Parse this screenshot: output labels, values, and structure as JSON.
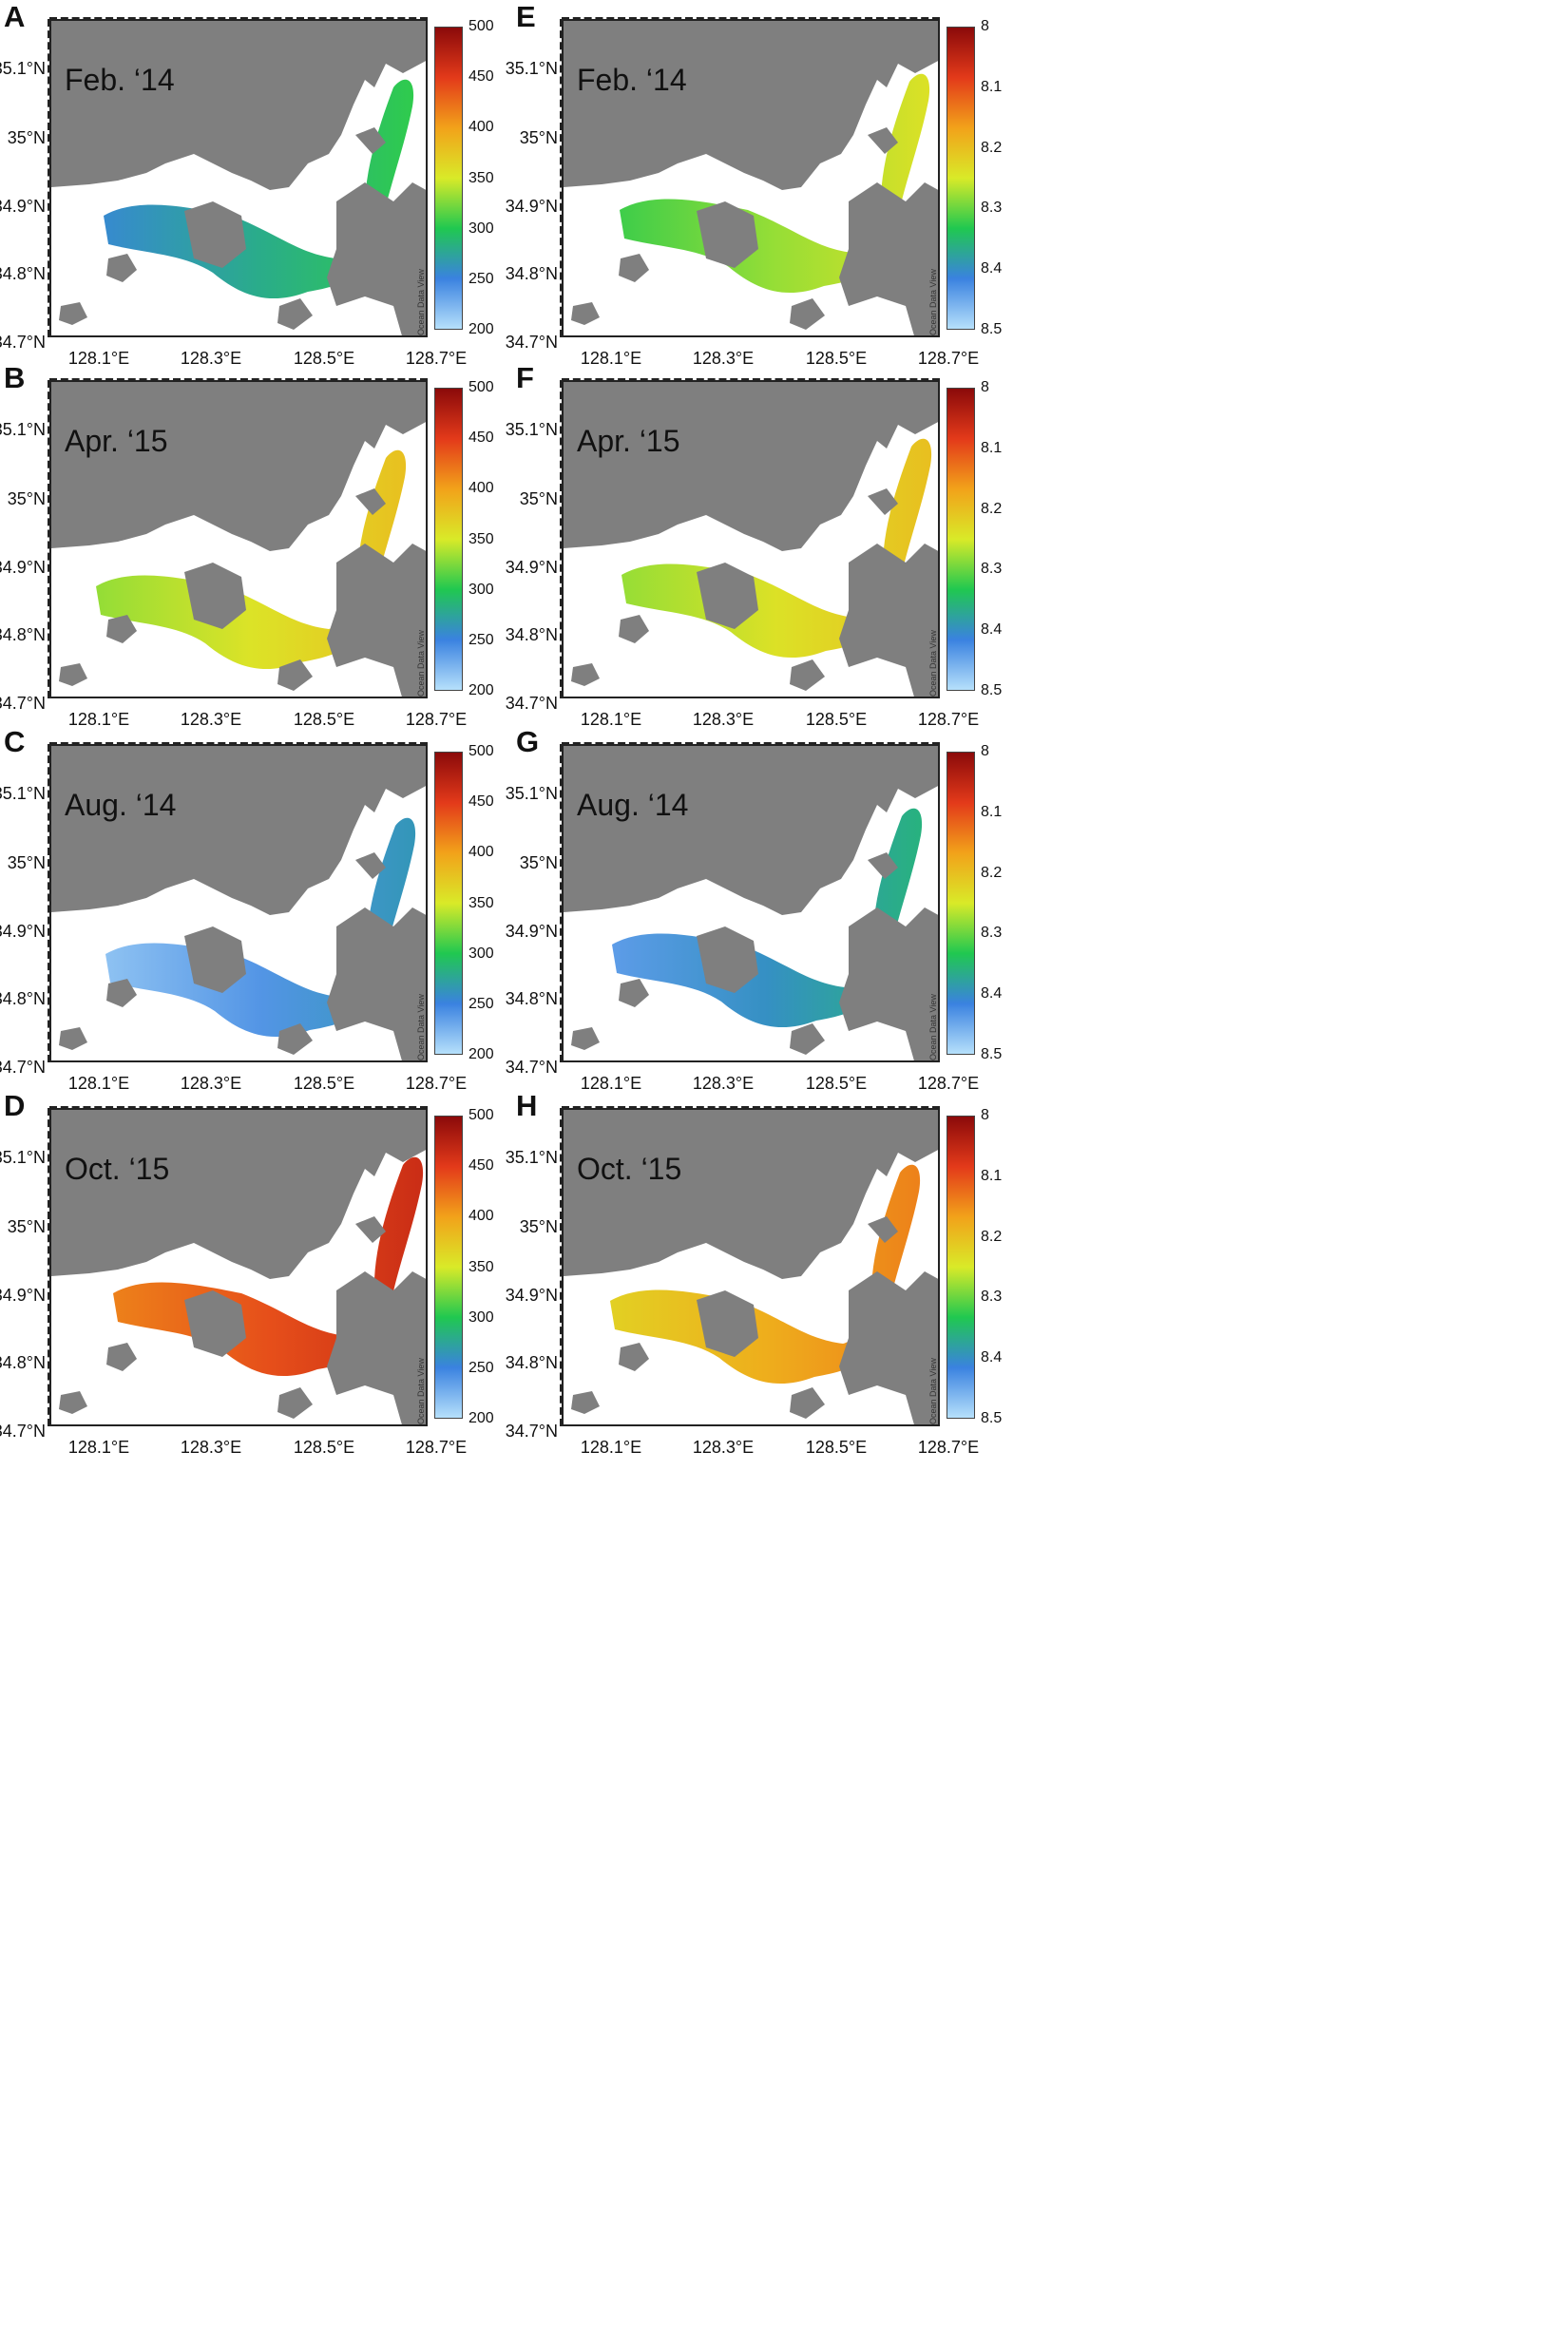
{
  "colors": {
    "land": "#7f7f7f",
    "water": "#ffffff",
    "scale": [
      "#b6e0fb",
      "#3a82e0",
      "#20c850",
      "#d9ea28",
      "#f2a21a",
      "#e33a1a",
      "#8b0a0a"
    ]
  },
  "axes": {
    "lat_ticks": [
      "35.1°N",
      "35°N",
      "34.9°N",
      "34.8°N",
      "34.7°N"
    ],
    "lon_ticks": [
      "128.1°E",
      "128.3°E",
      "128.5°E",
      "128.7°E"
    ]
  },
  "colorbars": {
    "left": {
      "ticks": [
        "500",
        "450",
        "400",
        "350",
        "300",
        "250",
        "200"
      ],
      "min": 200,
      "max": 500
    },
    "right": {
      "ticks": [
        "8",
        "8.1",
        "8.2",
        "8.3",
        "8.4",
        "8.5"
      ],
      "min": 8,
      "max": 8.5,
      "reversed": true
    }
  },
  "watermark": "Ocean Data View",
  "panels": [
    {
      "letter": "A",
      "date": "Feb. ‘14",
      "scale": "left",
      "level_avg": 280
    },
    {
      "letter": "E",
      "date": "Feb. ‘14",
      "scale": "right",
      "level_avg": 8.28
    },
    {
      "letter": "B",
      "date": "Apr. ‘15",
      "scale": "left",
      "level_avg": 355
    },
    {
      "letter": "F",
      "date": "Apr. ‘15",
      "scale": "right",
      "level_avg": 8.24
    },
    {
      "letter": "C",
      "date": "Aug. ‘14",
      "scale": "left",
      "level_avg": 240
    },
    {
      "letter": "G",
      "date": "Aug. ‘14",
      "scale": "right",
      "level_avg": 8.4
    },
    {
      "letter": "D",
      "date": "Oct. ‘15",
      "scale": "left",
      "level_avg": 440
    },
    {
      "letter": "H",
      "date": "Oct. ‘15",
      "scale": "right",
      "level_avg": 8.18
    }
  ]
}
